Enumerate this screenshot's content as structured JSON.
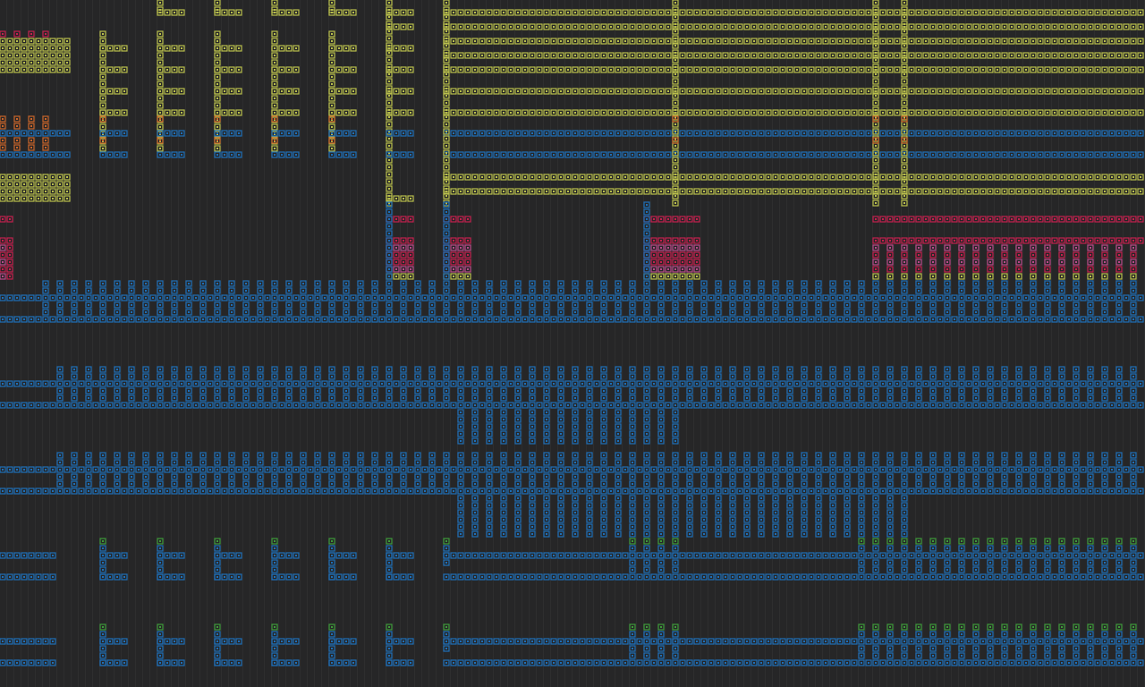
{
  "canvas": {
    "background": "#262627",
    "cell_colors": {
      "blue": "#1e6fb8",
      "yellow": "#b9bf4c",
      "red": "#c4204e",
      "orange": "#c8642a",
      "green": "#3e9a3a",
      "pink": "#b84a8a",
      "teal": "#2f8f8f",
      "white": "#d8d8d8"
    },
    "icon_name": "tile-grid"
  },
  "regions": [
    {
      "name": "yellow-band-top",
      "color": "yellow"
    },
    {
      "name": "red-row-mid",
      "color": "red"
    },
    {
      "name": "blue-band-1",
      "color": "blue"
    },
    {
      "name": "blue-band-2",
      "color": "blue"
    },
    {
      "name": "blue-band-3",
      "color": "blue"
    },
    {
      "name": "green-blue-band-bottom",
      "color": "green"
    }
  ]
}
